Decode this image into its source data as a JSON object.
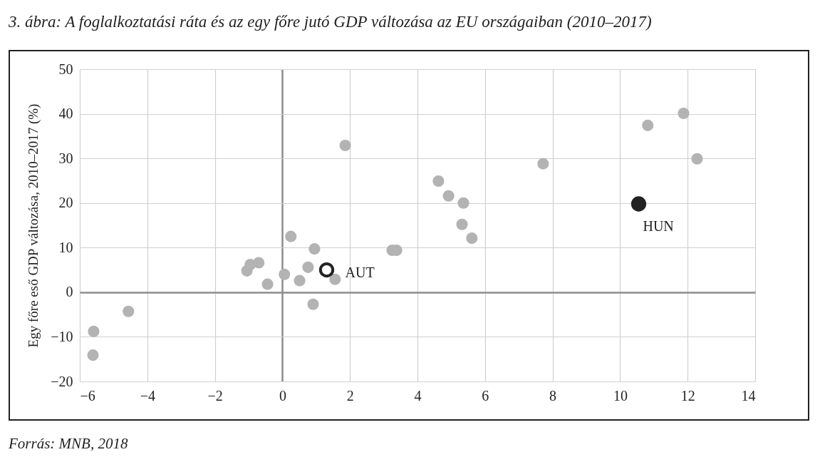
{
  "chart_data": {
    "type": "scatter",
    "title": "3. ábra: A foglalkoztatási ráta és az egy főre jutó GDP változása az EU országaiban (2010–2017)",
    "ylabel": "Egy főre eső GDP változása, 2010–2017 (%)",
    "annotations": [
      "Forrás: MNB, 2018"
    ],
    "xlim": [
      -6,
      14
    ],
    "xticks": [
      -6,
      -4,
      -2,
      0,
      2,
      4,
      6,
      8,
      10,
      12,
      14
    ],
    "ylim": [
      -20,
      50
    ],
    "yticks": [
      -20,
      -10,
      0,
      10,
      20,
      30,
      40,
      50
    ],
    "grid": true,
    "marker": "circle",
    "series": [
      {
        "color": "#b3b3b3",
        "x": [
          -5.61,
          -5.59,
          -4.56,
          -1.05,
          -0.7,
          -0.95,
          -0.44,
          0.06,
          0.25,
          0.51,
          0.76,
          0.95,
          0.91,
          1.56,
          1.86,
          3.25,
          3.38,
          4.62,
          4.92,
          5.36,
          5.32,
          5.61,
          7.72,
          10.82,
          11.88,
          12.28
        ],
        "values": [
          -14.1,
          -8.8,
          -4.3,
          4.8,
          6.6,
          6.2,
          1.8,
          4.0,
          12.5,
          2.6,
          5.6,
          9.7,
          -2.7,
          2.9,
          32.9,
          9.4,
          9.4,
          24.9,
          21.6,
          20.0,
          15.2,
          12.1,
          28.8,
          37.4,
          40.1,
          29.9
        ]
      },
      {
        "name": "AUT",
        "color": "#ffffff",
        "x": [
          1.31
        ],
        "values": [
          5.0
        ]
      },
      {
        "name": "HUN",
        "color": "#222222",
        "x": [
          10.55
        ],
        "values": [
          19.8
        ]
      }
    ]
  }
}
